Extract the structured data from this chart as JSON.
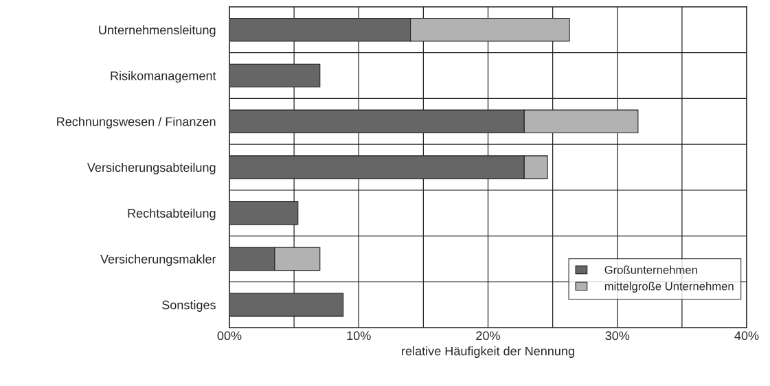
{
  "chart_data": {
    "type": "bar",
    "orientation": "horizontal",
    "stacked": true,
    "xlabel": "relative Häufigkeit der Nennung",
    "categories": [
      "Unternehmensleitung",
      "Risikomanagement",
      "Rechnungswesen / Finanzen",
      "Versicherungsabteilung",
      "Rechtsabteilung",
      "Versicherungsmakler",
      "Sonstiges"
    ],
    "series": [
      {
        "name": "Großunternehmen",
        "color": "#666666",
        "values": [
          14.0,
          7.0,
          22.8,
          22.8,
          5.3,
          3.5,
          8.8
        ]
      },
      {
        "name": "mittelgroße Unternehmen",
        "color": "#b2b2b2",
        "values": [
          12.3,
          null,
          8.8,
          1.8,
          null,
          3.5,
          null
        ]
      }
    ],
    "xlim": [
      0,
      40
    ],
    "xticks": [
      {
        "value": 0,
        "label": "00%"
      },
      {
        "value": 5,
        "label": null
      },
      {
        "value": 10,
        "label": "10%"
      },
      {
        "value": 15,
        "label": null
      },
      {
        "value": 20,
        "label": "20%"
      },
      {
        "value": 25,
        "label": null
      },
      {
        "value": 30,
        "label": "30%"
      },
      {
        "value": 35,
        "label": null
      },
      {
        "value": 40,
        "label": "40%"
      }
    ],
    "grid": true,
    "legend": "bottom right"
  }
}
